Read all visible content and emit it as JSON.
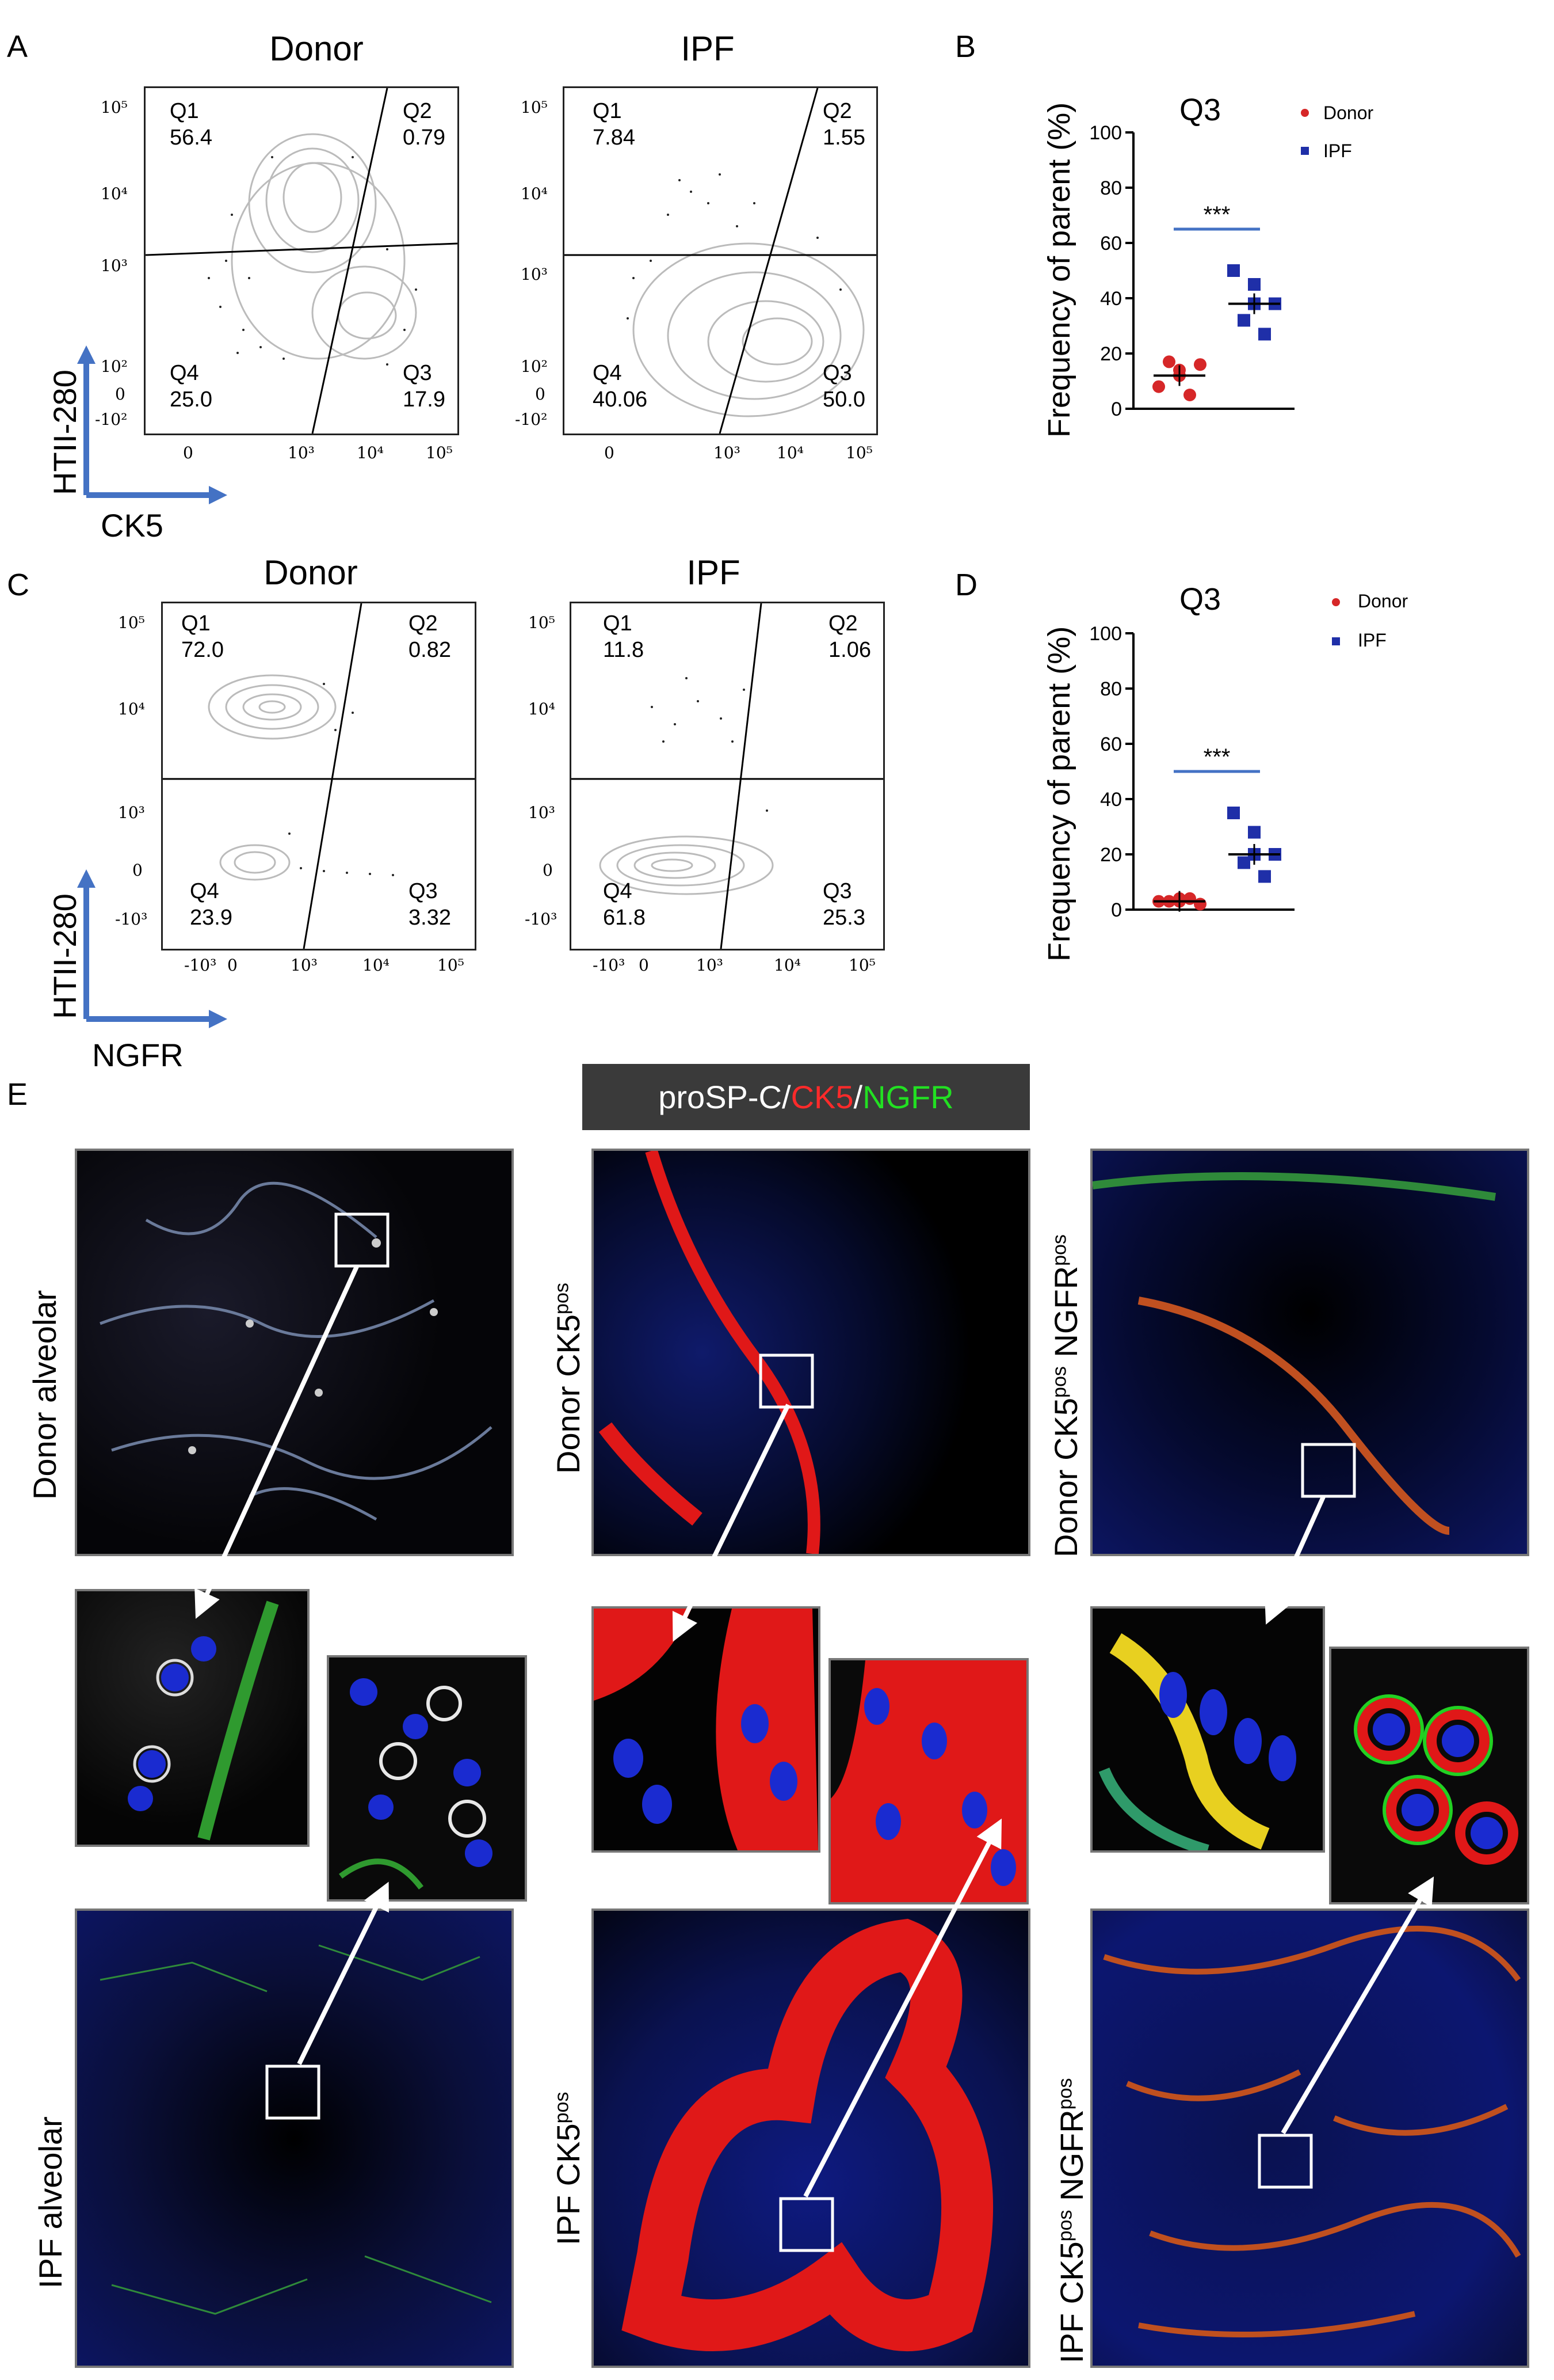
{
  "panels": {
    "A": {
      "letter": "A",
      "titles": [
        "Donor",
        "IPF"
      ],
      "y_axis": "HTII-280",
      "x_axis": "CK5",
      "donor_quadrants": {
        "q1": "Q1",
        "v1": "56.4",
        "q2": "Q2",
        "v2": "0.79",
        "q3": "Q3",
        "v3": "17.9",
        "q4": "Q4",
        "v4": "25.0"
      },
      "ipf_quadrants": {
        "q1": "Q1",
        "v1": "7.84",
        "q2": "Q2",
        "v2": "1.55",
        "q3": "Q3",
        "v3": "50.0",
        "q4": "Q4",
        "v4": "40.06"
      }
    },
    "B": {
      "letter": "B"
    },
    "C": {
      "letter": "C",
      "titles": [
        "Donor",
        "IPF"
      ],
      "y_axis": "HTII-280",
      "x_axis": "NGFR",
      "donor_quadrants": {
        "q1": "Q1",
        "v1": "72.0",
        "q2": "Q2",
        "v2": "0.82",
        "q3": "Q3",
        "v3": "3.32",
        "q4": "Q4",
        "v4": "23.9"
      },
      "ipf_quadrants": {
        "q1": "Q1",
        "v1": "11.8",
        "q2": "Q2",
        "v2": "1.06",
        "q3": "Q3",
        "v3": "25.3",
        "q4": "Q4",
        "v4": "61.8"
      }
    },
    "D": {
      "letter": "D"
    },
    "E": {
      "letter": "E",
      "stain_label": {
        "part1": "proSP-C/",
        "part2": "CK5",
        "part3": "/",
        "part4": "NGFR"
      },
      "row_labels": {
        "donor_alveolar": "Donor alveolar",
        "ipf_alveolar": "IPF alveolar",
        "donor_ck5": "Donor CK5",
        "ipf_ck5": "IPF CK5",
        "donor_ck5_ngfr_a": "Donor CK5",
        "donor_ck5_ngfr_b": " NGFR",
        "ipf_ck5_ngfr_a": "IPF CK5",
        "ipf_ck5_ngfr_b": " NGFR",
        "pos": "pos"
      }
    }
  },
  "flow_ticks": {
    "a_y": [
      "10⁵",
      "10⁴",
      "10³",
      "10²",
      "0",
      "-10²"
    ],
    "a_x": [
      "0",
      "10³",
      "10⁴",
      "10⁵"
    ],
    "c_y": [
      "10⁵",
      "10⁴",
      "10³",
      "0",
      "-10³"
    ],
    "c_x": [
      "-10³",
      "0",
      "10³",
      "10⁴",
      "10⁵"
    ]
  },
  "chart_data": [
    {
      "type": "scatter",
      "title": "Q3",
      "ylabel": "Frequency of parent (%)",
      "xlabel": "",
      "ylim": [
        0,
        100
      ],
      "yticks": [
        0,
        20,
        40,
        60,
        80,
        100
      ],
      "significance": "***",
      "series": [
        {
          "name": "Donor",
          "color": "#d62728",
          "marker": "circle",
          "values": [
            8,
            14,
            16,
            17,
            5,
            12
          ],
          "mean": 12
        },
        {
          "name": "IPF",
          "color": "#1f2fa8",
          "marker": "square",
          "values": [
            50,
            45,
            38,
            32,
            27,
            38
          ],
          "mean": 38
        }
      ],
      "legend_position": "top-right"
    },
    {
      "type": "scatter",
      "title": "Q3",
      "ylabel": "Frequency of parent (%)",
      "xlabel": "",
      "ylim": [
        0,
        100
      ],
      "yticks": [
        0,
        20,
        40,
        60,
        80,
        100
      ],
      "significance": "***",
      "series": [
        {
          "name": "Donor",
          "color": "#d62728",
          "marker": "circle",
          "values": [
            3,
            4,
            2,
            3,
            4,
            3
          ],
          "mean": 3
        },
        {
          "name": "IPF",
          "color": "#1f2fa8",
          "marker": "square",
          "values": [
            35,
            28,
            20,
            17,
            12,
            20
          ],
          "mean": 20
        }
      ],
      "legend_position": "top-right"
    }
  ]
}
